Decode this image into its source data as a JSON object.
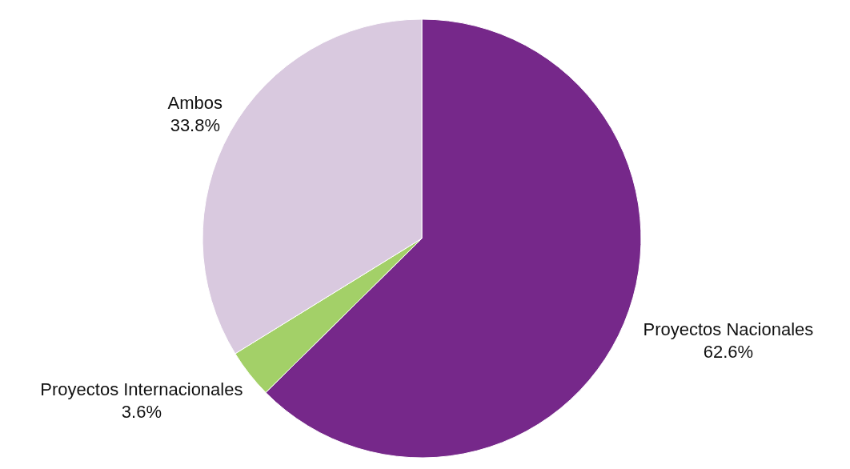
{
  "chart_data": {
    "type": "pie",
    "categories": [
      "Proyectos Nacionales",
      "Proyectos Internacionales",
      "Ambos"
    ],
    "values": [
      62.6,
      3.6,
      33.8
    ],
    "colors": [
      "#76288a",
      "#a3d068",
      "#d9c9df"
    ],
    "value_labels": [
      "62.6%",
      "3.6%",
      "33.8%"
    ]
  }
}
